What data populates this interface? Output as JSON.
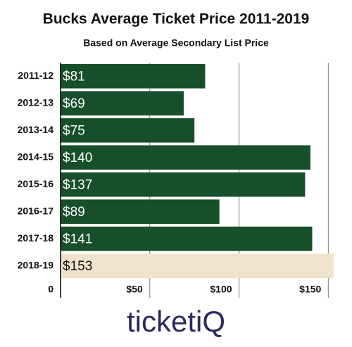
{
  "chart_data": {
    "type": "barh",
    "title": "Bucks Average Ticket Price 2011-2019",
    "subtitle": "Based on Average Secondary List Price",
    "categories": [
      "2011-12",
      "2012-13",
      "2013-14",
      "2014-15",
      "2015-16",
      "2016-17",
      "2017-18",
      "2018-19"
    ],
    "values": [
      81,
      69,
      75,
      140,
      137,
      89,
      141,
      153
    ],
    "value_labels": [
      "$81",
      "$69",
      "$75",
      "$140",
      "$137",
      "$89",
      "$141",
      "$153"
    ],
    "colors": [
      "#174f2b",
      "#174f2b",
      "#174f2b",
      "#174f2b",
      "#174f2b",
      "#174f2b",
      "#174f2b",
      "#efe3cb"
    ],
    "xlim": [
      0,
      155
    ],
    "xticks": [
      0,
      {
        "value": 50,
        "label": "$50"
      },
      {
        "value": 100,
        "label": "$100"
      },
      {
        "value": 150,
        "label": "$150"
      }
    ],
    "grid": true
  },
  "logo": "ticketiQ"
}
